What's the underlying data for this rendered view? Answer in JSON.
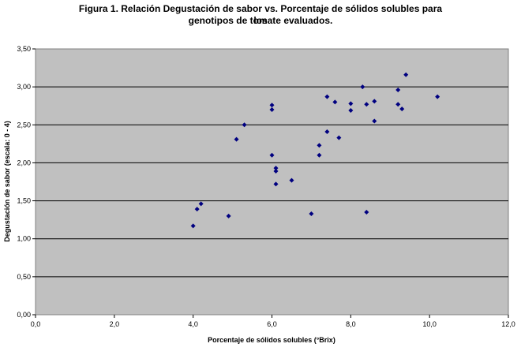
{
  "chart_data": {
    "type": "scatter",
    "title_line1": "Figura 1.  Relación Degustación de sabor vs. Porcentaje de sólidos solubles para los",
    "title_line2": "genotipos de tomate evaluados.",
    "xlabel": "Porcentaje de sólidos solubles (°Brix)",
    "ylabel": "Degustación de sabor (escala: 0 - 4)",
    "xlim": [
      0,
      12
    ],
    "ylim": [
      0,
      3.5
    ],
    "xticks": [
      "0,0",
      "2,0",
      "4,0",
      "6,0",
      "8,0",
      "10,0",
      "12,0"
    ],
    "yticks": [
      "0,00",
      "0,50",
      "1,00",
      "1,50",
      "2,00",
      "2,50",
      "3,00",
      "3,50"
    ],
    "grid": "horizontal",
    "plot_background": "#c0c0c0",
    "marker_color": "#000080",
    "points": [
      {
        "x": 4.0,
        "y": 1.17
      },
      {
        "x": 4.1,
        "y": 1.39
      },
      {
        "x": 4.2,
        "y": 1.46
      },
      {
        "x": 4.9,
        "y": 1.3
      },
      {
        "x": 5.1,
        "y": 2.31
      },
      {
        "x": 5.3,
        "y": 2.5
      },
      {
        "x": 6.0,
        "y": 2.76
      },
      {
        "x": 6.0,
        "y": 2.7
      },
      {
        "x": 6.0,
        "y": 2.1
      },
      {
        "x": 6.1,
        "y": 1.93
      },
      {
        "x": 6.1,
        "y": 1.89
      },
      {
        "x": 6.1,
        "y": 1.72
      },
      {
        "x": 6.5,
        "y": 1.77
      },
      {
        "x": 7.0,
        "y": 1.33
      },
      {
        "x": 7.2,
        "y": 2.23
      },
      {
        "x": 7.2,
        "y": 2.1
      },
      {
        "x": 7.4,
        "y": 2.87
      },
      {
        "x": 7.4,
        "y": 2.41
      },
      {
        "x": 7.6,
        "y": 2.8
      },
      {
        "x": 7.7,
        "y": 2.33
      },
      {
        "x": 8.0,
        "y": 2.78
      },
      {
        "x": 8.0,
        "y": 2.69
      },
      {
        "x": 8.3,
        "y": 3.0
      },
      {
        "x": 8.4,
        "y": 2.77
      },
      {
        "x": 8.4,
        "y": 1.35
      },
      {
        "x": 8.6,
        "y": 2.81
      },
      {
        "x": 8.6,
        "y": 2.55
      },
      {
        "x": 9.2,
        "y": 2.96
      },
      {
        "x": 9.2,
        "y": 2.77
      },
      {
        "x": 9.3,
        "y": 2.71
      },
      {
        "x": 9.4,
        "y": 3.16
      },
      {
        "x": 10.2,
        "y": 2.87
      }
    ]
  }
}
